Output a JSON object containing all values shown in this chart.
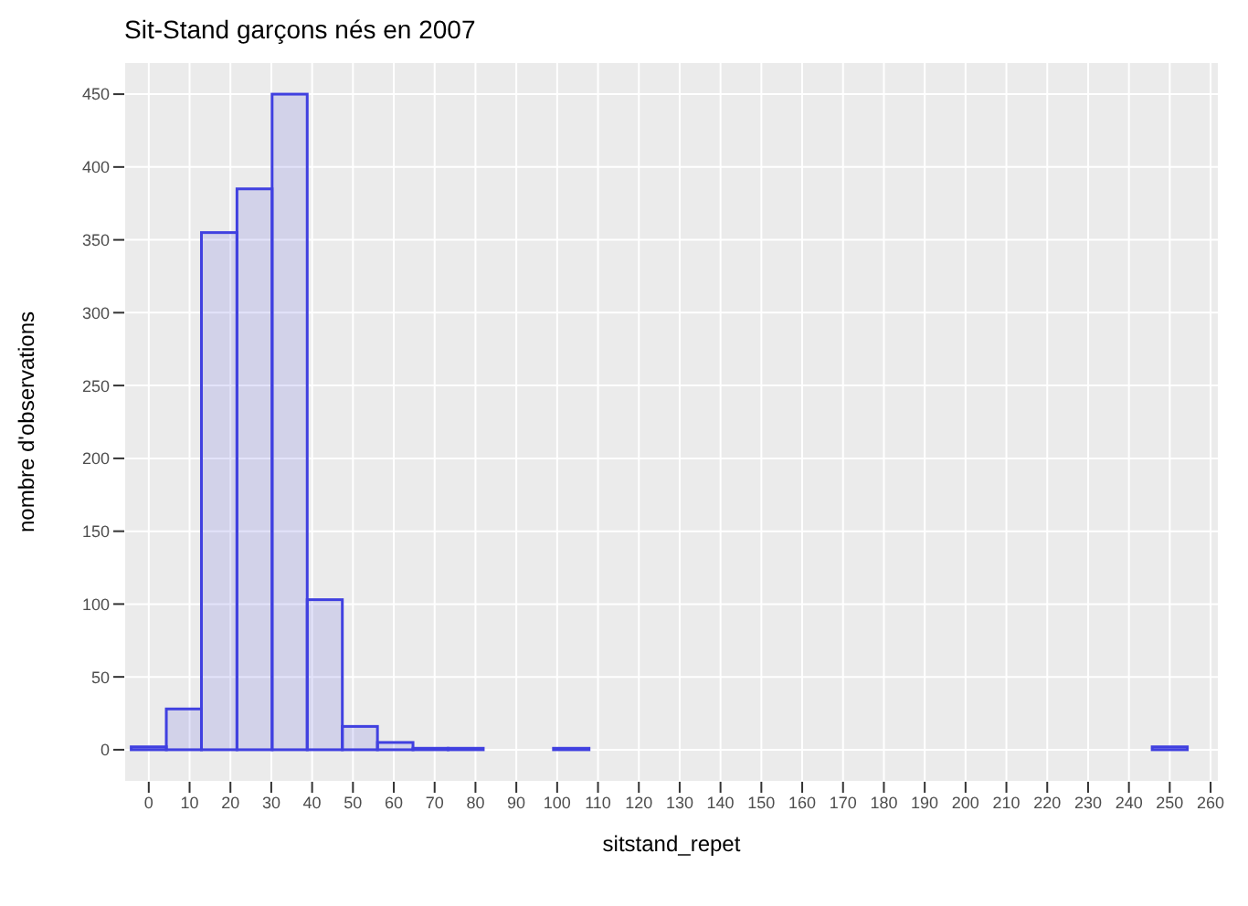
{
  "chart_data": {
    "type": "histogram",
    "title": "Sit-Stand garçons nés en 2007",
    "xlabel": "sitstand_repet",
    "ylabel": "nombre d'observations",
    "bins": [
      -4.3,
      4.3,
      12.9,
      21.6,
      30.2,
      38.8,
      47.4,
      56.0,
      64.7,
      73.3,
      81.9,
      90.5,
      99.1,
      107.8,
      116.4,
      125.0,
      133.6,
      142.2,
      150.9,
      159.5,
      168.1,
      176.7,
      185.3,
      193.9,
      202.6,
      211.2,
      219.8,
      228.4,
      237.1,
      245.7,
      254.3
    ],
    "values": [
      2,
      28,
      355,
      385,
      450,
      103,
      16,
      5,
      1,
      1,
      0,
      0,
      1,
      0,
      0,
      0,
      0,
      0,
      0,
      0,
      0,
      0,
      0,
      0,
      0,
      0,
      0,
      0,
      0,
      2
    ],
    "color": "#4040e0",
    "xlim": [
      -6,
      262
    ],
    "xticks": [
      0,
      10,
      20,
      30,
      40,
      50,
      60,
      70,
      80,
      90,
      100,
      110,
      120,
      130,
      140,
      150,
      160,
      170,
      180,
      190,
      200,
      210,
      220,
      230,
      240,
      250,
      260
    ],
    "ylim": [
      -22,
      472
    ],
    "yticks": [
      0,
      50,
      100,
      150,
      200,
      250,
      300,
      350,
      400,
      450
    ],
    "grid": true
  }
}
